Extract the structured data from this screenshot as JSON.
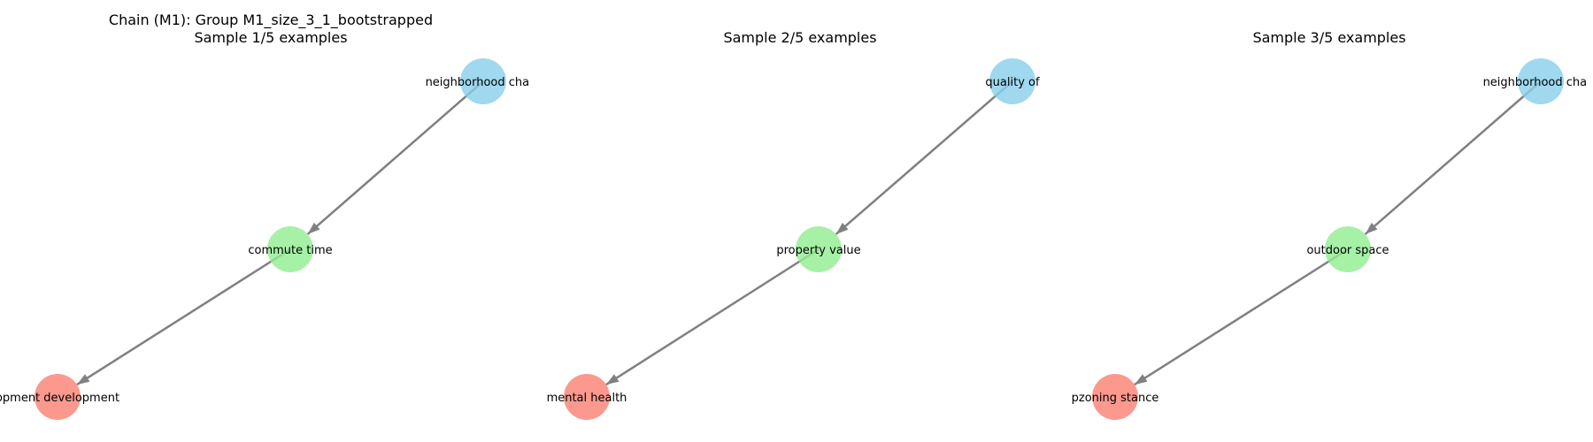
{
  "figure": {
    "title_line": "Chain (M1): Group M1_size_3_1_bootstrapped"
  },
  "colors": {
    "root": "#87ceeb",
    "middle": "#90ee90",
    "leaf": "#fa8072",
    "edge": "#808080"
  },
  "panels": [
    {
      "title": "Sample 1/5 examples",
      "nodes": [
        {
          "role": "root",
          "label": "neighborhood chara"
        },
        {
          "role": "middle",
          "label": "commute time"
        },
        {
          "role": "leaf",
          "label": "opment development"
        }
      ],
      "edges": [
        {
          "from": "root",
          "to": "middle"
        },
        {
          "from": "middle",
          "to": "leaf"
        }
      ]
    },
    {
      "title": "Sample 2/5 examples",
      "nodes": [
        {
          "role": "root",
          "label": "quality of"
        },
        {
          "role": "middle",
          "label": "property value"
        },
        {
          "role": "leaf",
          "label": "mental health"
        }
      ],
      "edges": [
        {
          "from": "root",
          "to": "middle"
        },
        {
          "from": "middle",
          "to": "leaf"
        }
      ]
    },
    {
      "title": "Sample 3/5 examples",
      "nodes": [
        {
          "role": "root",
          "label": "neighborhood chara"
        },
        {
          "role": "middle",
          "label": "outdoor space"
        },
        {
          "role": "leaf",
          "label": "pzoning stance"
        }
      ],
      "edges": [
        {
          "from": "root",
          "to": "middle"
        },
        {
          "from": "middle",
          "to": "leaf"
        }
      ]
    }
  ]
}
